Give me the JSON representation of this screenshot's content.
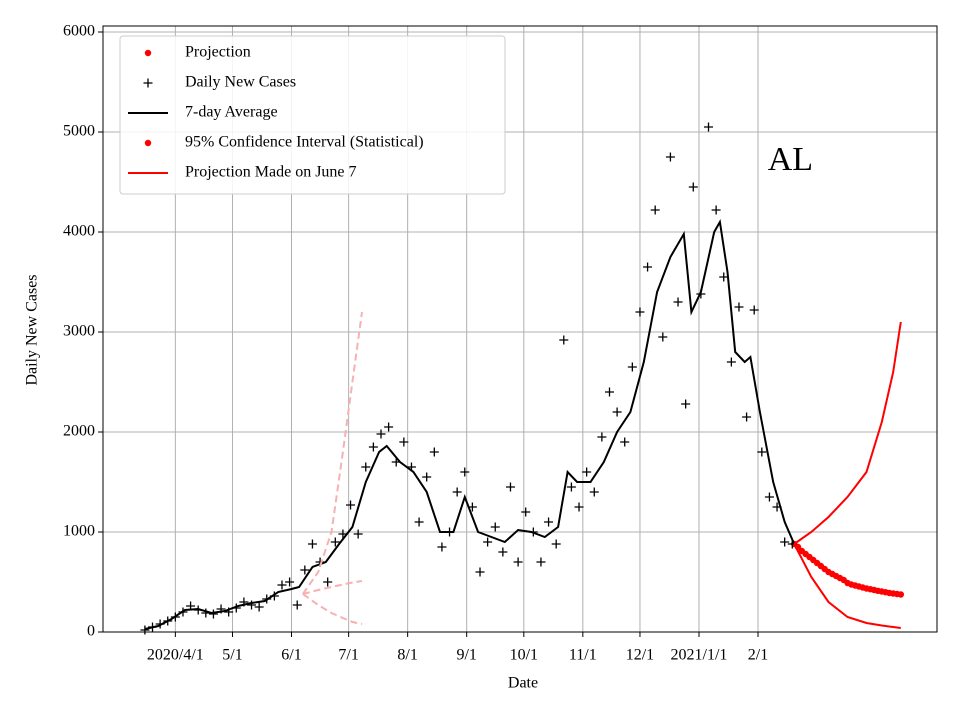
{
  "chart_data": {
    "type": "scatter",
    "xlabel": "Date",
    "ylabel": "Daily New Cases",
    "xlim": [
      "2020-02-23",
      "2021-05-06"
    ],
    "ylim": [
      0,
      6060
    ],
    "xticks": [
      {
        "value": "2020-04-01",
        "label": "2020/4/1"
      },
      {
        "value": "2020-05-01",
        "label": "5/1"
      },
      {
        "value": "2020-06-01",
        "label": "6/1"
      },
      {
        "value": "2020-07-01",
        "label": "7/1"
      },
      {
        "value": "2020-08-01",
        "label": "8/1"
      },
      {
        "value": "2020-09-01",
        "label": "9/1"
      },
      {
        "value": "2020-10-01",
        "label": "10/1"
      },
      {
        "value": "2020-11-01",
        "label": "11/1"
      },
      {
        "value": "2020-12-01",
        "label": "12/1"
      },
      {
        "value": "2021-01-01",
        "label": "2021/1/1"
      },
      {
        "value": "2021-02-01",
        "label": "2/1"
      }
    ],
    "yticks": [
      0,
      1000,
      2000,
      3000,
      4000,
      5000,
      6000
    ],
    "grid": true,
    "legend": "upper-left",
    "annotations": [
      {
        "text": "AL",
        "x": "2021-02-18",
        "y": 4700
      }
    ],
    "series": [
      {
        "name": "Projection",
        "color": "#ff0000",
        "marker": "o",
        "x": [
          "2021-02-20",
          "2021-02-22",
          "2021-02-24",
          "2021-02-26",
          "2021-02-28",
          "2021-03-02",
          "2021-03-04",
          "2021-03-06",
          "2021-03-08",
          "2021-03-10",
          "2021-03-12",
          "2021-03-14",
          "2021-03-16",
          "2021-03-18",
          "2021-03-20",
          "2021-03-22",
          "2021-03-24",
          "2021-03-26",
          "2021-03-28",
          "2021-03-30",
          "2021-04-01",
          "2021-04-03",
          "2021-04-05",
          "2021-04-07",
          "2021-04-09",
          "2021-04-11",
          "2021-04-13",
          "2021-04-15",
          "2021-04-17"
        ],
        "values": [
          880,
          850,
          810,
          780,
          750,
          720,
          690,
          660,
          630,
          600,
          580,
          560,
          540,
          520,
          490,
          475,
          465,
          455,
          445,
          435,
          428,
          420,
          412,
          405,
          398,
          390,
          385,
          380,
          375
        ]
      },
      {
        "name": "Daily New Cases",
        "color": "#000000",
        "marker": "+",
        "x": [
          "2020-03-16",
          "2020-03-20",
          "2020-03-24",
          "2020-03-28",
          "2020-04-01",
          "2020-04-05",
          "2020-04-09",
          "2020-04-13",
          "2020-04-17",
          "2020-04-21",
          "2020-04-25",
          "2020-04-29",
          "2020-05-03",
          "2020-05-07",
          "2020-05-11",
          "2020-05-15",
          "2020-05-19",
          "2020-05-23",
          "2020-05-27",
          "2020-05-31",
          "2020-06-04",
          "2020-06-08",
          "2020-06-12",
          "2020-06-16",
          "2020-06-20",
          "2020-06-24",
          "2020-06-28",
          "2020-07-02",
          "2020-07-06",
          "2020-07-10",
          "2020-07-14",
          "2020-07-18",
          "2020-07-22",
          "2020-07-26",
          "2020-07-30",
          "2020-08-03",
          "2020-08-07",
          "2020-08-11",
          "2020-08-15",
          "2020-08-19",
          "2020-08-23",
          "2020-08-27",
          "2020-08-31",
          "2020-09-04",
          "2020-09-08",
          "2020-09-12",
          "2020-09-16",
          "2020-09-20",
          "2020-09-24",
          "2020-09-28",
          "2020-10-02",
          "2020-10-06",
          "2020-10-10",
          "2020-10-14",
          "2020-10-18",
          "2020-10-22",
          "2020-10-26",
          "2020-10-30",
          "2020-11-03",
          "2020-11-07",
          "2020-11-11",
          "2020-11-15",
          "2020-11-19",
          "2020-11-23",
          "2020-11-27",
          "2020-12-01",
          "2020-12-05",
          "2020-12-09",
          "2020-12-13",
          "2020-12-17",
          "2020-12-21",
          "2020-12-25",
          "2020-12-29",
          "2021-01-02",
          "2021-01-06",
          "2021-01-10",
          "2021-01-14",
          "2021-01-18",
          "2021-01-22",
          "2021-01-26",
          "2021-01-30",
          "2021-02-03",
          "2021-02-07",
          "2021-02-11",
          "2021-02-15",
          "2021-02-19"
        ],
        "values": [
          20,
          50,
          80,
          110,
          150,
          200,
          260,
          220,
          190,
          180,
          230,
          200,
          240,
          300,
          270,
          250,
          330,
          360,
          470,
          500,
          270,
          620,
          880,
          700,
          500,
          900,
          980,
          1270,
          980,
          1650,
          1850,
          1980,
          2050,
          1700,
          1900,
          1650,
          1100,
          1550,
          1800,
          850,
          1000,
          1400,
          1600,
          1250,
          600,
          900,
          1050,
          800,
          1450,
          700,
          1200,
          1000,
          700,
          1100,
          880,
          2920,
          1450,
          1250,
          1600,
          1400,
          1950,
          2400,
          2200,
          1900,
          2650,
          3200,
          3650,
          4220,
          2950,
          4750,
          3300,
          2280,
          4450,
          3380,
          5050,
          4220,
          3550,
          2700,
          3250,
          2150,
          3220,
          1800,
          1350,
          1250,
          900,
          880
        ]
      },
      {
        "name": "7-day Average",
        "color": "#000000",
        "marker": null,
        "x": [
          "2020-03-16",
          "2020-03-23",
          "2020-03-30",
          "2020-04-06",
          "2020-04-13",
          "2020-04-20",
          "2020-04-27",
          "2020-05-04",
          "2020-05-11",
          "2020-05-18",
          "2020-05-25",
          "2020-06-01",
          "2020-06-05",
          "2020-06-12",
          "2020-06-19",
          "2020-06-26",
          "2020-07-03",
          "2020-07-10",
          "2020-07-17",
          "2020-07-21",
          "2020-07-28",
          "2020-08-04",
          "2020-08-11",
          "2020-08-18",
          "2020-08-25",
          "2020-08-31",
          "2020-09-07",
          "2020-09-14",
          "2020-09-21",
          "2020-09-28",
          "2020-10-05",
          "2020-10-12",
          "2020-10-19",
          "2020-10-24",
          "2020-10-29",
          "2020-11-05",
          "2020-11-12",
          "2020-11-19",
          "2020-11-26",
          "2020-12-03",
          "2020-12-10",
          "2020-12-17",
          "2020-12-24",
          "2020-12-28",
          "2021-01-02",
          "2021-01-09",
          "2021-01-12",
          "2021-01-16",
          "2021-01-20",
          "2021-01-25",
          "2021-01-28",
          "2021-02-02",
          "2021-02-09",
          "2021-02-15",
          "2021-02-20"
        ],
        "values": [
          30,
          60,
          130,
          220,
          230,
          190,
          210,
          260,
          290,
          310,
          400,
          430,
          450,
          650,
          700,
          880,
          1050,
          1500,
          1800,
          1860,
          1700,
          1600,
          1400,
          1000,
          1000,
          1350,
          1000,
          950,
          900,
          1020,
          1000,
          950,
          1050,
          1600,
          1500,
          1500,
          1700,
          2000,
          2200,
          2700,
          3400,
          3750,
          3980,
          3200,
          3400,
          4000,
          4100,
          3600,
          2800,
          2700,
          2750,
          2200,
          1500,
          1100,
          880
        ]
      },
      {
        "name": "95% Confidence Interval (Statistical)",
        "color": "#ff0000",
        "marker": "o",
        "x": [
          "2021-02-20",
          "2021-03-01",
          "2021-03-10",
          "2021-03-20",
          "2021-03-30",
          "2021-04-07",
          "2021-04-13",
          "2021-04-17"
        ],
        "upper": [
          880,
          1000,
          1150,
          1350,
          1600,
          2100,
          2600,
          3100
        ],
        "lower": [
          880,
          550,
          300,
          150,
          90,
          65,
          50,
          40
        ]
      },
      {
        "name": "Projection Made on June 7",
        "color": "#ff0000",
        "marker": null,
        "line_color": "#f7b1b1",
        "dashed": true,
        "x": [
          "2020-06-07",
          "2020-06-15",
          "2020-06-22",
          "2020-06-28",
          "2020-07-03",
          "2020-07-08"
        ],
        "values": [
          380,
          420,
          450,
          475,
          495,
          510
        ],
        "upper": [
          380,
          600,
          1000,
          1800,
          2500,
          3200
        ],
        "lower": [
          380,
          270,
          190,
          140,
          100,
          80
        ]
      }
    ]
  }
}
